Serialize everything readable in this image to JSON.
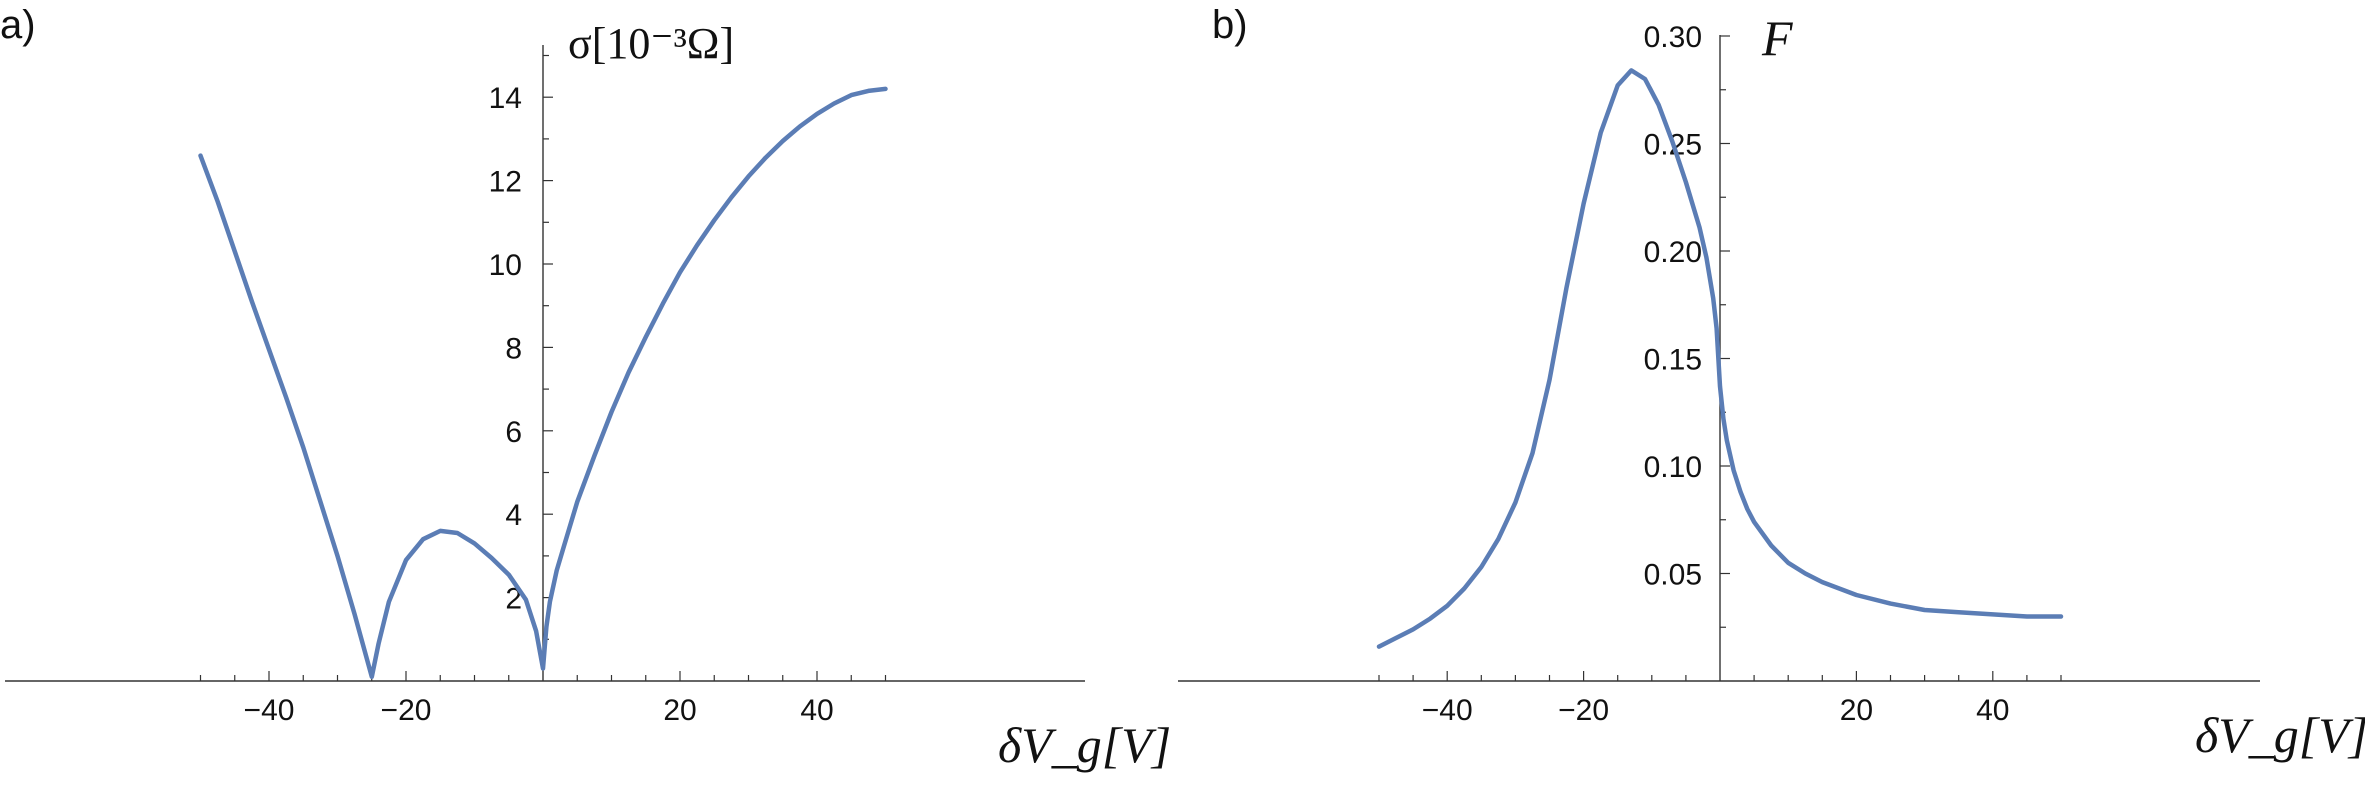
{
  "chart_data": [
    {
      "type": "line",
      "panel_label": "a)",
      "title": "",
      "xlabel": "δV_g[V]",
      "ylabel": "σ[10⁻³Ω]",
      "xlim": [
        -52,
        52
      ],
      "ylim": [
        0,
        15
      ],
      "x_ticks": [
        -40,
        -20,
        20,
        40
      ],
      "y_ticks": [
        2,
        4,
        6,
        8,
        10,
        12,
        14
      ],
      "grid": false,
      "legend": "none",
      "line_color": "#5b7db5",
      "series": [
        {
          "x": [
            -50,
            -47.5,
            -45,
            -42.5,
            -40,
            -37.5,
            -35,
            -32.5,
            -30,
            -27.5,
            -25,
            -24,
            -22.5,
            -20,
            -17.5,
            -15,
            -12.5,
            -10,
            -7.5,
            -5,
            -2.5,
            -1,
            0,
            0.5,
            1,
            2,
            3,
            5,
            7.5,
            10,
            12.5,
            15,
            17.5,
            20,
            22.5,
            25,
            27.5,
            30,
            32.5,
            35,
            37.5,
            40,
            42.5,
            45,
            47.5,
            50
          ],
          "y": [
            12.6,
            11.5,
            10.3,
            9.1,
            7.95,
            6.8,
            5.6,
            4.3,
            3.0,
            1.6,
            0.1,
            0.9,
            1.9,
            2.9,
            3.4,
            3.6,
            3.55,
            3.3,
            2.95,
            2.55,
            1.95,
            1.2,
            0.3,
            1.3,
            1.9,
            2.65,
            3.2,
            4.3,
            5.4,
            6.45,
            7.4,
            8.25,
            9.05,
            9.8,
            10.45,
            11.05,
            11.6,
            12.1,
            12.55,
            12.95,
            13.3,
            13.6,
            13.85,
            14.05,
            14.15,
            14.2
          ]
        }
      ]
    },
    {
      "type": "line",
      "panel_label": "b)",
      "title": "",
      "xlabel": "δV_g[V]",
      "ylabel": "F",
      "xlim": [
        -52,
        52
      ],
      "ylim": [
        0,
        0.3
      ],
      "x_ticks": [
        -40,
        -20,
        20,
        40
      ],
      "y_ticks": [
        0.05,
        0.1,
        0.15,
        0.2,
        0.25,
        0.3
      ],
      "y_tick_labels": [
        "0.05",
        "0.10",
        "0.15",
        "0.20",
        "0.25",
        "0.30"
      ],
      "grid": false,
      "legend": "none",
      "line_color": "#5b7db5",
      "series": [
        {
          "x": [
            -50,
            -47.5,
            -45,
            -42.5,
            -40,
            -37.5,
            -35,
            -32.5,
            -30,
            -27.5,
            -25,
            -22.5,
            -20,
            -17.5,
            -15,
            -13,
            -11,
            -9,
            -7,
            -5,
            -3,
            -2,
            -1,
            -0.5,
            0,
            0.5,
            1,
            2,
            3,
            4,
            5,
            7.5,
            10,
            12.5,
            15,
            20,
            25,
            30,
            35,
            40,
            45,
            50
          ],
          "y": [
            0.016,
            0.02,
            0.024,
            0.029,
            0.035,
            0.043,
            0.053,
            0.066,
            0.083,
            0.106,
            0.14,
            0.183,
            0.222,
            0.255,
            0.277,
            0.284,
            0.28,
            0.268,
            0.251,
            0.232,
            0.211,
            0.197,
            0.178,
            0.164,
            0.137,
            0.122,
            0.112,
            0.098,
            0.088,
            0.08,
            0.074,
            0.063,
            0.055,
            0.05,
            0.046,
            0.04,
            0.036,
            0.033,
            0.032,
            0.031,
            0.03,
            0.03
          ]
        }
      ]
    }
  ]
}
